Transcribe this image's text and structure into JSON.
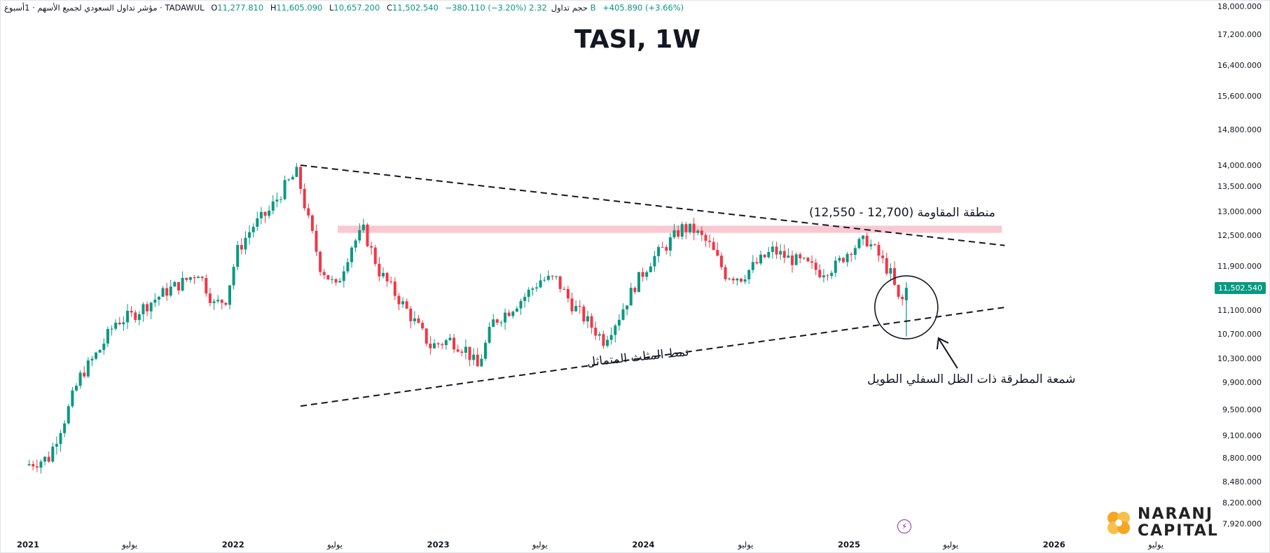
{
  "header": {
    "symbol_line": "مؤشر تداول السعودي لجميع الأسهم · 1أسبوع · TADAWUL",
    "open_label": "O",
    "open": "11,277.810",
    "high_label": "H",
    "high": "11,605.090",
    "low_label": "L",
    "low": "10,657.200",
    "close_label": "C",
    "close": "11,502.540",
    "change": "−380.110 (−3.20%)",
    "volume_label": "حجم تداول",
    "volume": "2.32 B",
    "change2": "+405.890 (+3.66%)"
  },
  "title": "TASI, 1W",
  "price_badge": "11,502.540",
  "annotations": {
    "resistance": "منطقة المقاومة (12,700 - 12,550)",
    "pattern": "نمط المثلث المتماثل",
    "hammer": "شمعة المطرقة ذات الظل السفلي الطويل"
  },
  "logo": {
    "line1": "NARANJ",
    "line2": "CAPITAL"
  },
  "colors": {
    "up": "#089981",
    "down": "#f23645",
    "resistance": "#f7b6c2",
    "badge": "#089981"
  },
  "chart_data": {
    "type": "candlestick",
    "title": "TASI, 1W",
    "y_axis_scale": "log",
    "y_ticks": [
      7920,
      8200,
      8480,
      8800,
      9100,
      9500,
      9900,
      10300,
      10700,
      11100,
      11900,
      12500,
      13000,
      13500,
      14000,
      14800,
      15600,
      16400,
      17200,
      18000
    ],
    "y_tick_labels": [
      "7,920.000",
      "8,200.000",
      "8,480.000",
      "8,800.000",
      "9,100.000",
      "9,500.000",
      "9,900.000",
      "10,300.000",
      "10,700.000",
      "11,100.000",
      "11,900.000",
      "12,500.000",
      "13,000.000",
      "13,500.000",
      "14,000.000",
      "14,800.000",
      "15,600.000",
      "16,400.000",
      "17,200.000",
      "18,000.000"
    ],
    "x_ticks": [
      {
        "label": "2021",
        "date": "2021-01"
      },
      {
        "label": "يوليو",
        "date": "2021-07"
      },
      {
        "label": "2022",
        "date": "2022-01"
      },
      {
        "label": "يوليو",
        "date": "2022-07"
      },
      {
        "label": "2023",
        "date": "2023-01"
      },
      {
        "label": "يوليو",
        "date": "2023-07"
      },
      {
        "label": "2024",
        "date": "2024-01"
      },
      {
        "label": "يوليو",
        "date": "2024-07"
      },
      {
        "label": "2025",
        "date": "2025-01"
      },
      {
        "label": "يوليو",
        "date": "2025-07"
      },
      {
        "label": "2026",
        "date": "2026-01"
      },
      {
        "label": "يوليو",
        "date": "2026-07"
      }
    ],
    "price_path": [
      [
        "2021-01-03",
        8700
      ],
      [
        "2021-02-14",
        8800
      ],
      [
        "2021-03-14",
        9350
      ],
      [
        "2021-04-11",
        10000
      ],
      [
        "2021-05-16",
        10450
      ],
      [
        "2021-06-13",
        10900
      ],
      [
        "2021-07-11",
        11000
      ],
      [
        "2021-08-08",
        11200
      ],
      [
        "2021-09-12",
        11450
      ],
      [
        "2021-10-10",
        11600
      ],
      [
        "2021-11-07",
        11800
      ],
      [
        "2021-12-05",
        11200
      ],
      [
        "2021-12-26",
        11300
      ],
      [
        "2022-01-16",
        12200
      ],
      [
        "2022-02-13",
        12700
      ],
      [
        "2022-03-13",
        13000
      ],
      [
        "2022-04-10",
        13500
      ],
      [
        "2022-05-01",
        13820
      ],
      [
        "2022-05-22",
        12800
      ],
      [
        "2022-06-12",
        11900
      ],
      [
        "2022-07-10",
        11500
      ],
      [
        "2022-08-07",
        12300
      ],
      [
        "2022-08-28",
        12600
      ],
      [
        "2022-09-25",
        11800
      ],
      [
        "2022-10-23",
        11400
      ],
      [
        "2022-11-20",
        11000
      ],
      [
        "2022-12-25",
        10500
      ],
      [
        "2023-01-29",
        10600
      ],
      [
        "2023-02-26",
        10450
      ],
      [
        "2023-03-19",
        10150
      ],
      [
        "2023-04-16",
        10900
      ],
      [
        "2023-05-14",
        11100
      ],
      [
        "2023-06-11",
        11350
      ],
      [
        "2023-07-09",
        11650
      ],
      [
        "2023-08-06",
        11650
      ],
      [
        "2023-09-03",
        11200
      ],
      [
        "2023-10-01",
        10900
      ],
      [
        "2023-10-29",
        10600
      ],
      [
        "2023-11-26",
        11000
      ],
      [
        "2023-12-24",
        11550
      ],
      [
        "2024-01-21",
        12000
      ],
      [
        "2024-02-18",
        12300
      ],
      [
        "2024-03-17",
        12650
      ],
      [
        "2024-04-07",
        12600
      ],
      [
        "2024-05-05",
        12300
      ],
      [
        "2024-06-02",
        11750
      ],
      [
        "2024-06-30",
        11700
      ],
      [
        "2024-07-28",
        11950
      ],
      [
        "2024-08-25",
        12200
      ],
      [
        "2024-09-22",
        12050
      ],
      [
        "2024-10-20",
        11950
      ],
      [
        "2024-11-17",
        11800
      ],
      [
        "2024-12-15",
        11900
      ],
      [
        "2025-01-12",
        12250
      ],
      [
        "2025-02-09",
        12400
      ],
      [
        "2025-03-02",
        12100
      ],
      [
        "2025-03-23",
        11750
      ],
      [
        "2025-04-06",
        11277.81
      ]
    ],
    "last_candle": {
      "date": "2025-04-13",
      "open": 11277.81,
      "high": 11605.09,
      "low": 10657.2,
      "close": 11502.54
    },
    "resistance_zone": {
      "low": 12550,
      "high": 12700,
      "label": "منطقة المقاومة (12,700 - 12,550)"
    },
    "upper_trendline": [
      [
        "2022-05-01",
        14000
      ],
      [
        "2025-10-05",
        12300
      ]
    ],
    "lower_trendline": [
      [
        "2022-05-01",
        9550
      ],
      [
        "2025-10-05",
        11150
      ]
    ],
    "hammer_highlight": {
      "date": "2025-04-13",
      "price": 11150
    }
  }
}
